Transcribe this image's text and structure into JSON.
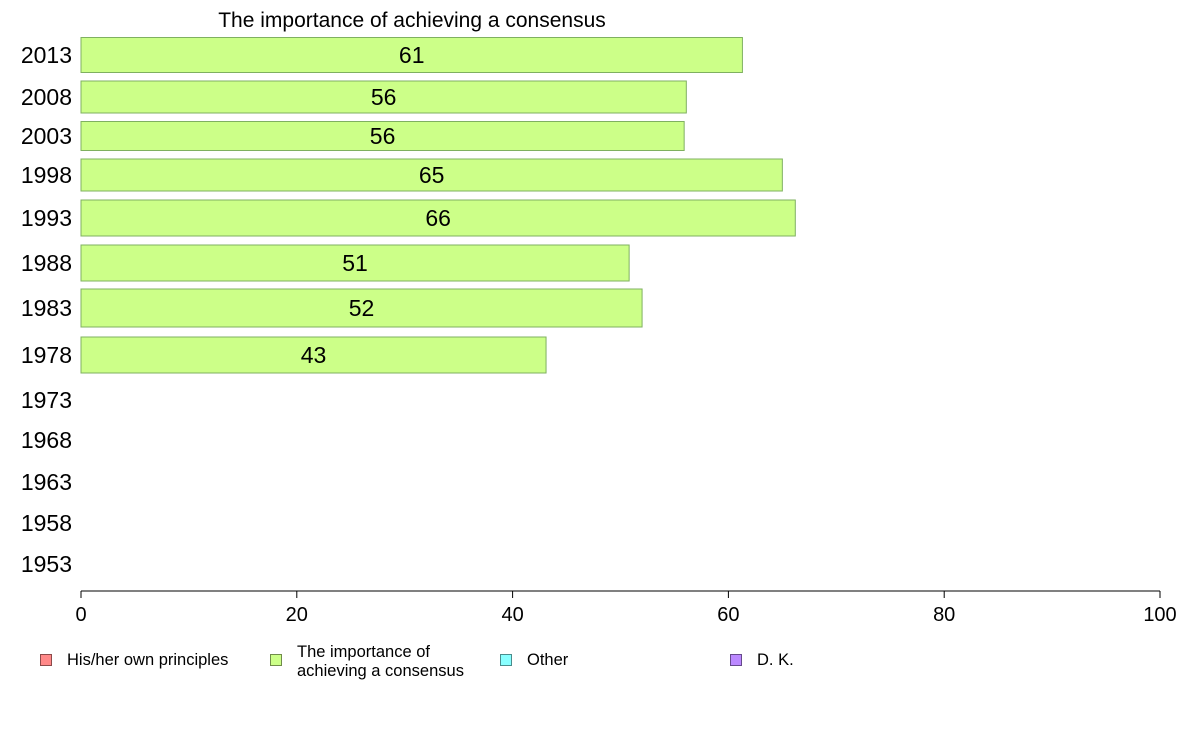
{
  "chart_data": {
    "type": "bar",
    "orientation": "horizontal",
    "title": "The importance of achieving a consensus",
    "categories": [
      "2013",
      "2008",
      "2003",
      "1998",
      "1993",
      "1988",
      "1983",
      "1978",
      "1973",
      "1968",
      "1963",
      "1958",
      "1953"
    ],
    "series": [
      {
        "name": "The importance of achieving a consensus",
        "color": "#ccff88",
        "values": [
          61.3,
          56.1,
          55.9,
          65.0,
          66.2,
          50.8,
          52.0,
          43.1,
          null,
          null,
          null,
          null,
          null
        ],
        "labels": [
          "61",
          "56",
          "56",
          "65",
          "66",
          "51",
          "52",
          "43",
          "",
          "",
          "",
          "",
          ""
        ]
      }
    ],
    "xlim": [
      0,
      100
    ],
    "xticks": [
      "0",
      "20",
      "40",
      "60",
      "80",
      "100"
    ],
    "grid": false,
    "legend_position": "bottom"
  },
  "legend": [
    {
      "label": "His/her own principles",
      "color": "#ff8888"
    },
    {
      "label": "The importance of achieving a consensus",
      "color": "#ccff88"
    },
    {
      "label": "Other",
      "color": "#88ffff"
    },
    {
      "label": "D. K.",
      "color": "#bb88ff"
    }
  ]
}
